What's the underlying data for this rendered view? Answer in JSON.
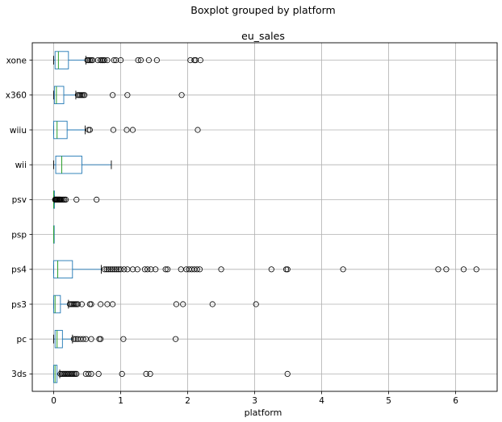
{
  "chart_data": {
    "type": "boxplot",
    "suptitle": "Boxplot grouped by platform",
    "title": "eu_sales",
    "xlabel": "platform",
    "orientation": "horizontal",
    "xlim": [
      -0.32,
      6.62
    ],
    "xticks": [
      "0",
      "1",
      "2",
      "3",
      "4",
      "5",
      "6"
    ],
    "grid": true,
    "colors": {
      "box": "#1f77b4",
      "median": "#2ca02c",
      "flier": "#000000",
      "grid": "#b0b0b0"
    },
    "categories": [
      "xone",
      "x360",
      "wiiu",
      "wii",
      "psv",
      "psp",
      "ps4",
      "ps3",
      "pc",
      "3ds"
    ],
    "boxes": [
      {
        "label": "xone",
        "whislo": 0,
        "q1": 0.02,
        "med": 0.07,
        "q3": 0.22,
        "whishi": 0.48,
        "fliers": [
          0.5,
          0.52,
          0.54,
          0.56,
          0.58,
          0.66,
          0.7,
          0.72,
          0.74,
          0.76,
          0.8,
          0.9,
          0.93,
          1.0,
          1.26,
          1.3,
          1.42,
          1.54,
          2.04,
          2.1,
          2.12,
          2.19
        ]
      },
      {
        "label": "x360",
        "whislo": 0,
        "q1": 0.01,
        "med": 0.04,
        "q3": 0.15,
        "whishi": 0.33,
        "fliers": [
          0.36,
          0.38,
          0.4,
          0.42,
          0.44,
          0.46,
          0.88,
          1.1,
          1.91
        ]
      },
      {
        "label": "wiiu",
        "whislo": 0,
        "q1": 0.0,
        "med": 0.05,
        "q3": 0.2,
        "whishi": 0.47,
        "fliers": [
          0.52,
          0.54,
          0.89,
          1.09,
          1.18,
          2.15
        ]
      },
      {
        "label": "wii",
        "whislo": 0,
        "q1": 0.03,
        "med": 0.12,
        "q3": 0.42,
        "whishi": 0.86,
        "fliers": []
      },
      {
        "label": "psv",
        "whislo": 0,
        "q1": 0.0,
        "med": 0.0,
        "q3": 0.01,
        "whishi": 0.01,
        "fliers": [
          0.02,
          0.03,
          0.04,
          0.05,
          0.06,
          0.07,
          0.08,
          0.09,
          0.1,
          0.12,
          0.14,
          0.16,
          0.18,
          0.34,
          0.64
        ]
      },
      {
        "label": "psp",
        "whislo": 0,
        "q1": 0.0,
        "med": 0.0,
        "q3": 0.0,
        "whishi": 0.0,
        "fliers": []
      },
      {
        "label": "ps4",
        "whislo": 0,
        "q1": 0.0,
        "med": 0.06,
        "q3": 0.28,
        "whishi": 0.71,
        "fliers": [
          0.76,
          0.79,
          0.82,
          0.85,
          0.88,
          0.91,
          0.94,
          0.97,
          1.0,
          1.05,
          1.1,
          1.18,
          1.25,
          1.36,
          1.4,
          1.45,
          1.52,
          1.67,
          1.7,
          1.9,
          1.98,
          2.02,
          2.06,
          2.1,
          2.14,
          2.18,
          2.5,
          3.25,
          3.47,
          3.49,
          4.32,
          5.74,
          5.86,
          6.12,
          6.31
        ]
      },
      {
        "label": "ps3",
        "whislo": 0,
        "q1": 0.0,
        "med": 0.02,
        "q3": 0.1,
        "whishi": 0.22,
        "fliers": [
          0.24,
          0.26,
          0.28,
          0.3,
          0.32,
          0.34,
          0.36,
          0.42,
          0.54,
          0.56,
          0.7,
          0.8,
          0.88,
          1.83,
          1.93,
          2.37,
          3.02
        ]
      },
      {
        "label": "pc",
        "whislo": 0,
        "q1": 0.02,
        "med": 0.05,
        "q3": 0.13,
        "whishi": 0.28,
        "fliers": [
          0.3,
          0.33,
          0.36,
          0.4,
          0.44,
          0.48,
          0.56,
          0.68,
          0.7,
          1.04,
          1.82
        ]
      },
      {
        "label": "3ds",
        "whislo": 0,
        "q1": 0.0,
        "med": 0.02,
        "q3": 0.05,
        "whishi": 0.09,
        "fliers": [
          0.1,
          0.12,
          0.14,
          0.16,
          0.18,
          0.2,
          0.22,
          0.24,
          0.26,
          0.28,
          0.3,
          0.32,
          0.34,
          0.48,
          0.52,
          0.56,
          0.67,
          1.02,
          1.38,
          1.44,
          3.49
        ]
      }
    ]
  }
}
